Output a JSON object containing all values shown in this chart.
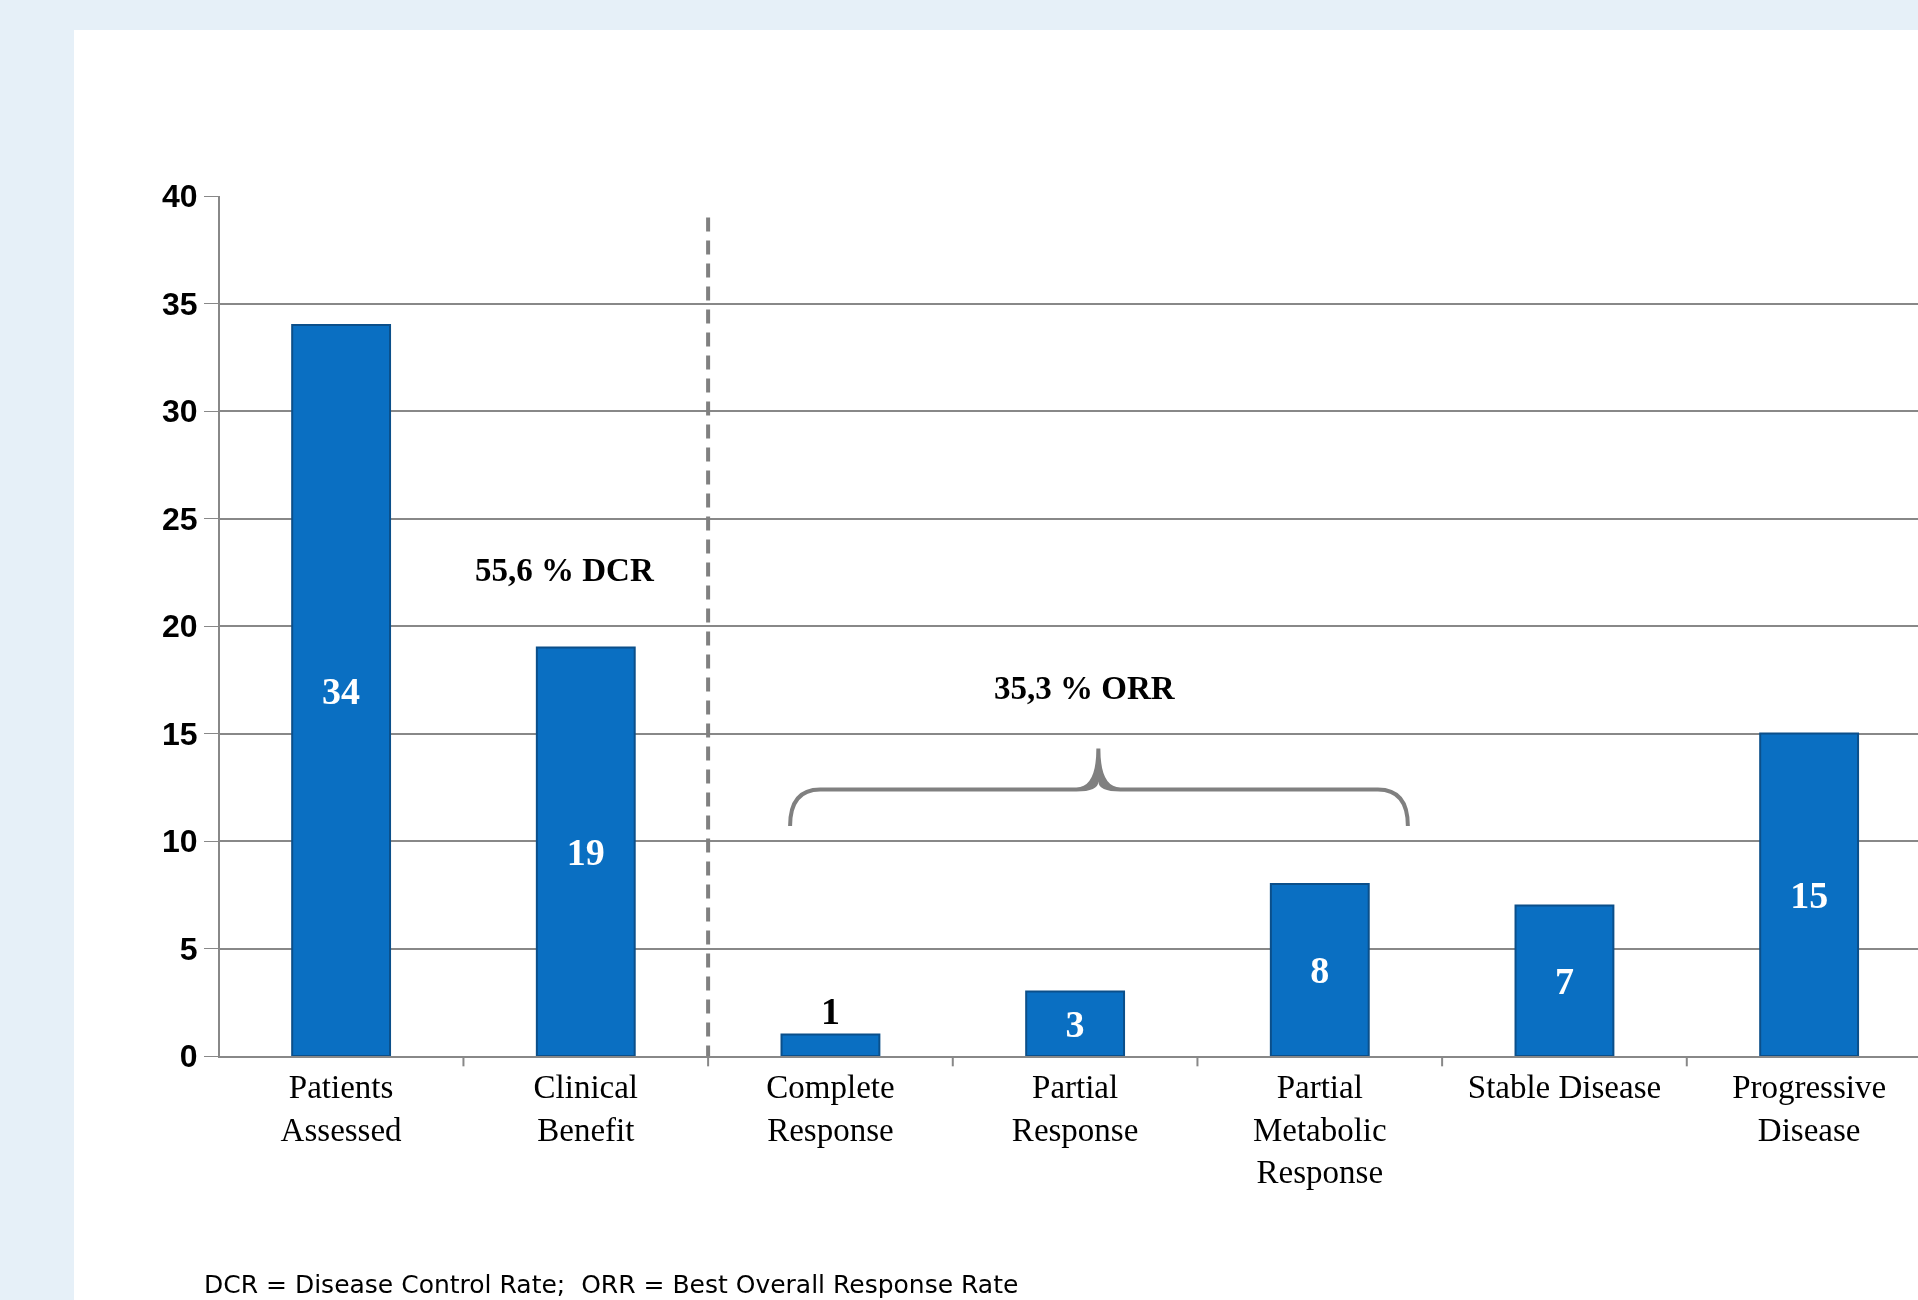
{
  "chart_data": {
    "type": "bar",
    "categories": [
      "Patients Assessed",
      "Clinical Benefit",
      "Complete Response",
      "Partial Response",
      "Partial Metabolic Response",
      "Stable Disease",
      "Progressive Disease"
    ],
    "values": [
      34,
      19,
      1,
      3,
      8,
      7,
      15
    ],
    "color": "#0a6fc2",
    "data_labels": true,
    "ylim": [
      0,
      40
    ],
    "yticks": [
      0,
      5,
      10,
      15,
      20,
      25,
      30,
      35,
      40
    ],
    "grid": "y",
    "annotations": [
      "55,6 % DCR",
      "35,3 % ORR",
      "DCR = Disease Control Rate;  ORR = Best Overall Response Rate"
    ]
  }
}
